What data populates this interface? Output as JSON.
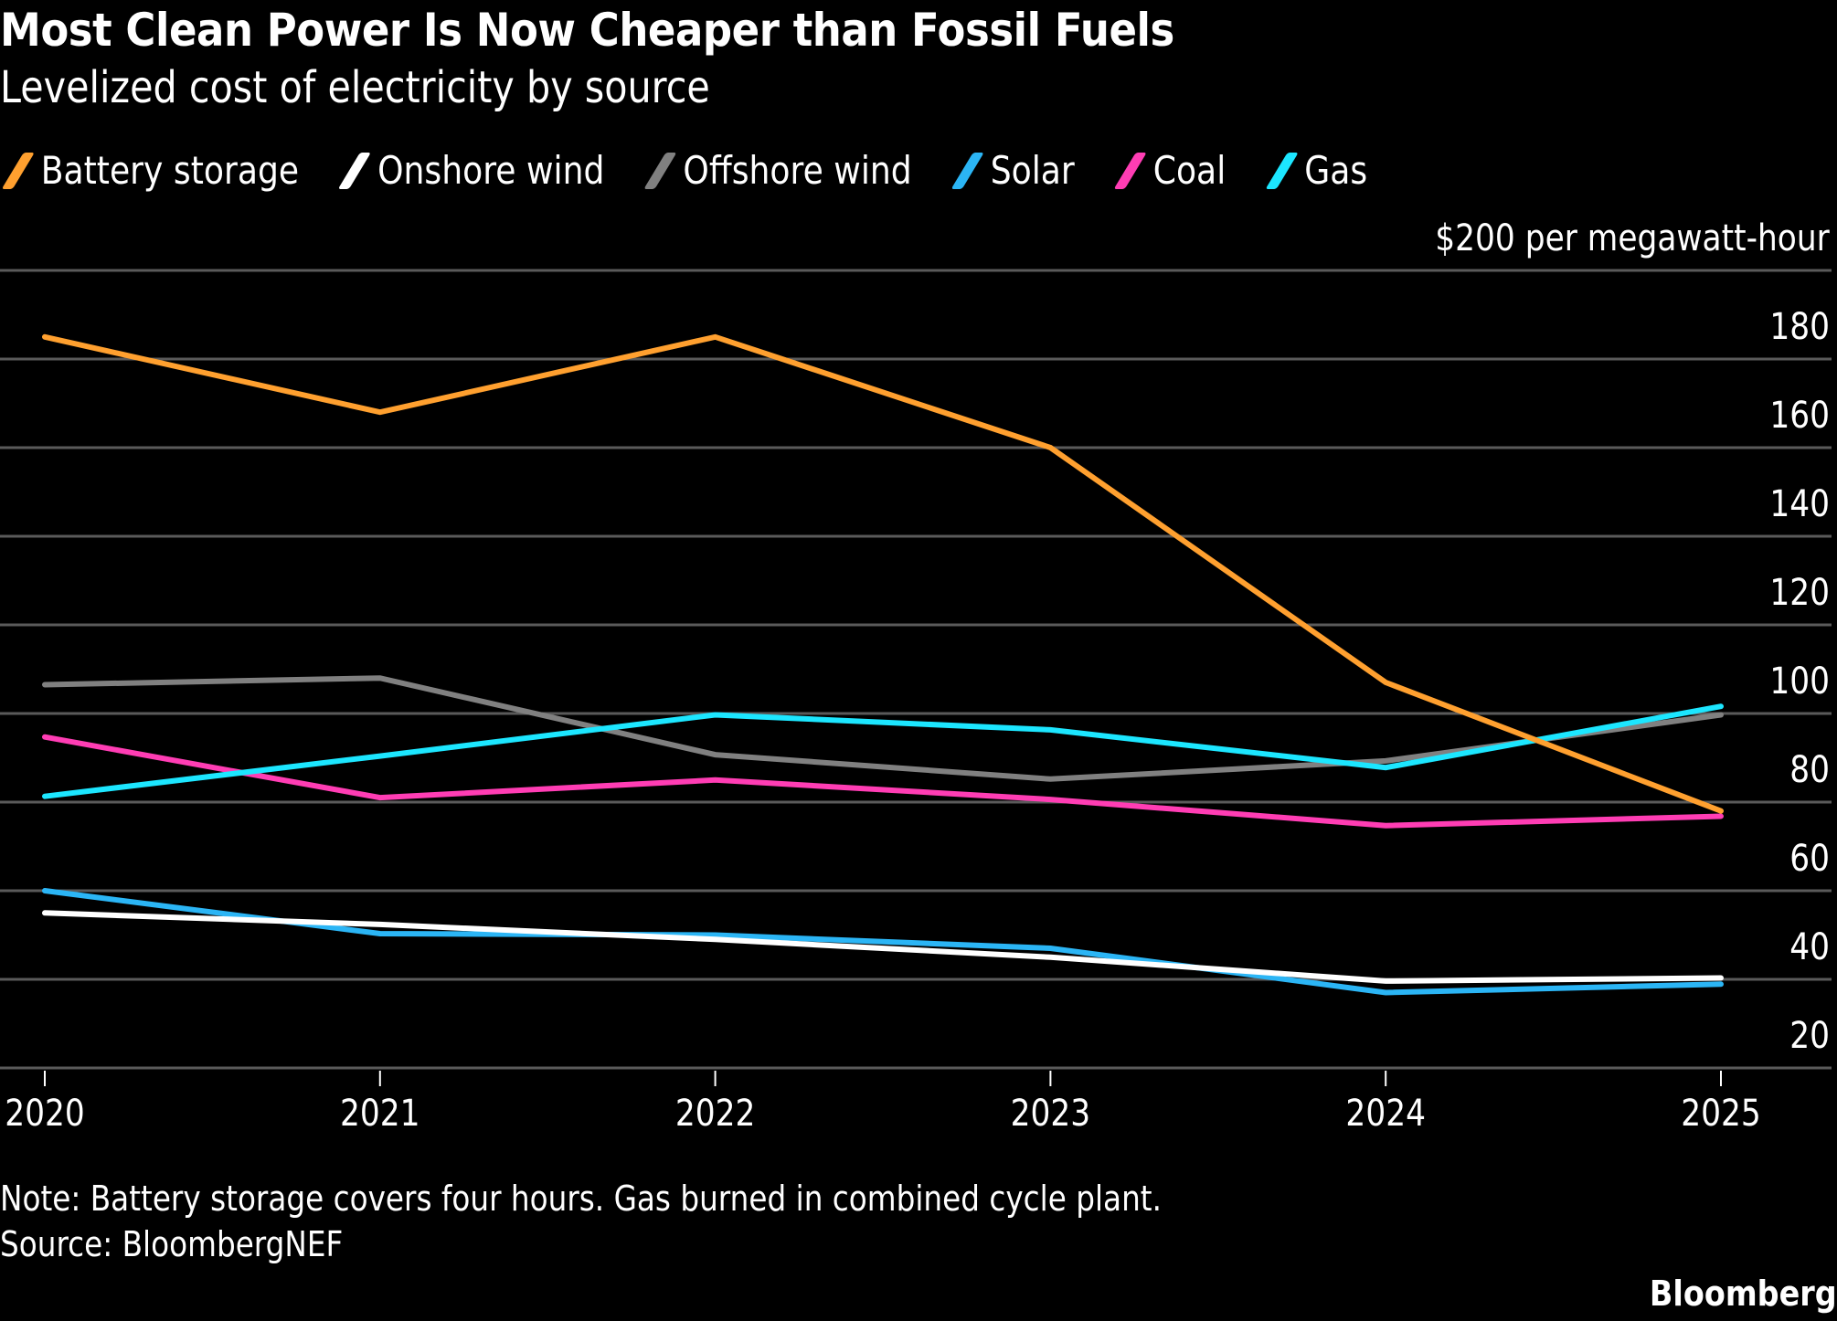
{
  "chart_data": {
    "type": "line",
    "title": "Most Clean Power Is Now Cheaper than Fossil Fuels",
    "subtitle": "Levelized cost of electricity by source",
    "unit_label": "$200 per megawatt-hour",
    "xlabel": "",
    "ylabel": "$ per megawatt-hour",
    "x": [
      "2020",
      "2021",
      "2022",
      "2023",
      "2024",
      "2025"
    ],
    "ylim": [
      20,
      200
    ],
    "yticks": [
      200,
      180,
      160,
      140,
      120,
      100,
      80,
      60,
      40,
      20
    ],
    "ytick_labels": [
      "",
      "180",
      "160",
      "140",
      "120",
      "100",
      "80",
      "60",
      "40",
      "20"
    ],
    "grid": true,
    "legend_position": "top-left",
    "series": [
      {
        "name": "Battery storage",
        "color": "#FFA02F",
        "values": [
          185,
          168,
          185,
          160,
          107,
          78
        ]
      },
      {
        "name": "Onshore wind",
        "color": "#FFFFFF",
        "values": [
          55,
          52.4,
          49,
          45,
          39.6,
          40.3
        ]
      },
      {
        "name": "Offshore wind",
        "color": "#808080",
        "values": [
          106.5,
          108,
          90.7,
          85.2,
          89.3,
          99.7
        ]
      },
      {
        "name": "Solar",
        "color": "#2BB5F5",
        "values": [
          60,
          50.3,
          50,
          47,
          37,
          38.9
        ]
      },
      {
        "name": "Coal",
        "color": "#FF3DB4",
        "values": [
          94.7,
          81,
          85,
          80.6,
          74.7,
          76.8
        ]
      },
      {
        "name": "Gas",
        "color": "#1CE6FF",
        "values": [
          81.3,
          90.4,
          99.7,
          96.3,
          87.8,
          101.6
        ]
      }
    ],
    "note": "Note: Battery storage covers four hours. Gas burned in combined cycle plant.",
    "source": "Source: BloombergNEF",
    "brand": "Bloomberg"
  }
}
